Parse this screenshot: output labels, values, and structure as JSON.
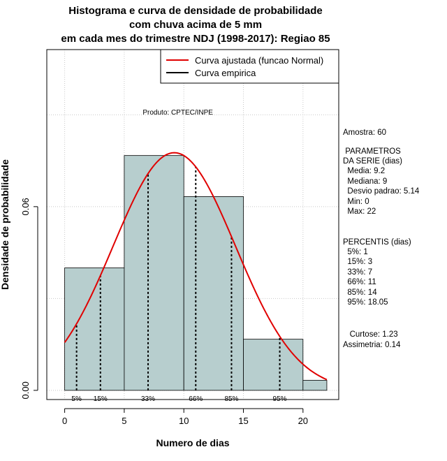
{
  "chart_data": {
    "type": "bar",
    "title_lines": [
      "Histograma e curva de densidade de probabilidade",
      "com chuva acima de 5 mm",
      "em cada mes do trimestre NDJ (1998-2017): Regiao 85"
    ],
    "xlabel": "Numero de dias",
    "ylabel": "Densidade de probabilidade",
    "xlim": [
      -1.5,
      23
    ],
    "ylim": [
      -0.003,
      0.1113
    ],
    "x_ticks": [
      0,
      5,
      10,
      15,
      20
    ],
    "y_ticks": [
      0.0,
      0.06
    ],
    "y_tick_labels": [
      "0.00",
      "0.06"
    ],
    "grid": true,
    "bins": [
      {
        "start": 0,
        "end": 5,
        "density": 0.04
      },
      {
        "start": 5,
        "end": 10,
        "density": 0.0767
      },
      {
        "start": 10,
        "end": 15,
        "density": 0.0633
      },
      {
        "start": 15,
        "end": 20,
        "density": 0.0167
      },
      {
        "start": 20,
        "end": 22,
        "density": 0.0033
      }
    ],
    "normal_curve": {
      "name": "Curva ajustada (funcao Normal)",
      "mean": 9.2,
      "sd": 5.14,
      "x_range": [
        0,
        22
      ],
      "color": "#e00000"
    },
    "empirical_curve_name": "Curva empirica",
    "legend_position": "top-right",
    "percentile_lines": [
      {
        "label": "5%",
        "x": 1
      },
      {
        "label": "15%",
        "x": 3
      },
      {
        "label": "33%",
        "x": 7
      },
      {
        "label": "66%",
        "x": 11
      },
      {
        "label": "85%",
        "x": 14
      },
      {
        "label": "95%",
        "x": 18.05
      }
    ],
    "annotation": "Produto: CPTEC/INPE",
    "bar_color": "#b7cece"
  },
  "stats": {
    "sample": "Amostra: 60",
    "params_header_1": " PARAMETROS",
    "params_header_2": "DA SERIE (dias)",
    "params": [
      "  Media: 9.2",
      "  Mediana: 9",
      "  Desvio padrao: 5.14",
      "  Min: 0",
      "  Max: 22"
    ],
    "percentis_header": "PERCENTIS (dias)",
    "percentis": [
      "  5%: 1",
      "  15%: 3",
      "  33%: 7",
      "  66%: 11",
      "  85%: 14",
      "  95%: 18.05"
    ],
    "kurtosis": "   Curtose: 1.23",
    "skewness": "Assimetria: 0.14"
  }
}
